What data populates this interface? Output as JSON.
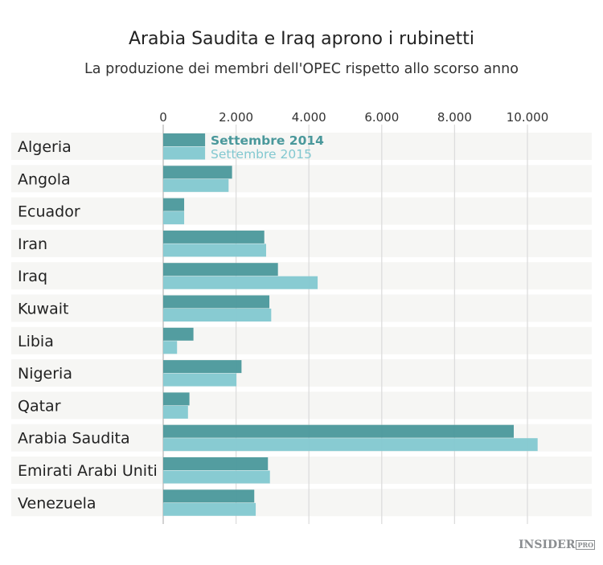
{
  "chart_data": {
    "type": "bar",
    "orientation": "horizontal",
    "title": "Arabia Saudita e Iraq aprono i rubinetti",
    "subtitle": "La produzione dei membri dell'OPEC rispetto allo scorso anno",
    "categories": [
      "Algeria",
      "Angola",
      "Ecuador",
      "Iran",
      "Iraq",
      "Kuwait",
      "Libia",
      "Nigeria",
      "Qatar",
      "Arabia Saudita",
      "Emirati Arabi Uniti",
      "Venezuela"
    ],
    "series": [
      {
        "name": "Settembre 2014",
        "color": "#4a989b",
        "values": [
          1150,
          1890,
          575,
          2775,
          3150,
          2915,
          830,
          2150,
          720,
          9625,
          2875,
          2500
        ]
      },
      {
        "name": "Settembre 2015",
        "color": "#82c8d0",
        "values": [
          1150,
          1795,
          575,
          2825,
          4240,
          2965,
          380,
          2010,
          680,
          10280,
          2930,
          2540
        ]
      }
    ],
    "xlim": [
      0,
      11500
    ],
    "xticks": [
      0,
      2000,
      4000,
      6000,
      8000,
      10000
    ],
    "xtick_labels": [
      "0",
      "2.000",
      "4.000",
      "6.000",
      "8.000",
      "10.000"
    ],
    "grid": true,
    "legend": "inside, next to first bars"
  },
  "logo": {
    "text": "INSIDER",
    "badge": "PRO"
  }
}
